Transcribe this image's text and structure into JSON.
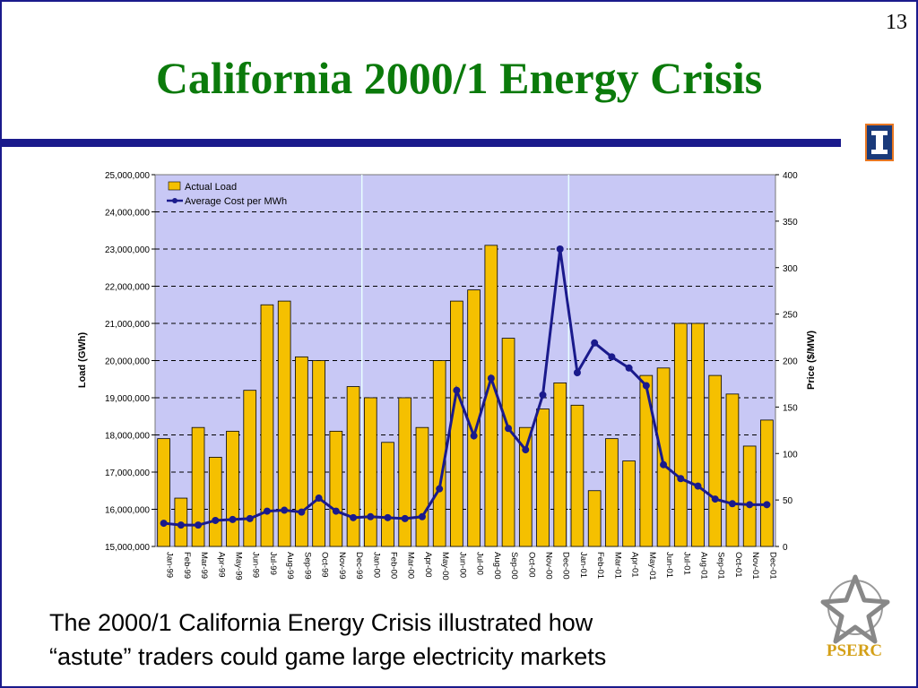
{
  "slide": {
    "number": "13",
    "title": "California 2000/1 Energy Crisis",
    "caption_line1": "The 2000/1 California Energy Crisis illustrated how",
    "caption_line2": "“astute” traders could game large electricity markets",
    "logo_text": "PSERC",
    "colors": {
      "title": "#0b7a0b",
      "rule": "#1a1a8c",
      "bars": "#f5c000",
      "line": "#1a1a8c",
      "plot_bg": "#c8c8f5"
    }
  },
  "chart_data": {
    "type": "bar",
    "categories": [
      "Jan-99",
      "Feb-99",
      "Mar-99",
      "Apr-99",
      "May-99",
      "Jun-99",
      "Jul-99",
      "Aug-99",
      "Sep-99",
      "Oct-99",
      "Nov-99",
      "Dec-99",
      "Jan-00",
      "Feb-00",
      "Mar-00",
      "Apr-00",
      "May-00",
      "Jun-00",
      "Jul-00",
      "Aug-00",
      "Sep-00",
      "Oct-00",
      "Nov-00",
      "Dec-00",
      "Jan-01",
      "Feb-01",
      "Mar-01",
      "Apr-01",
      "May-01",
      "Jun-01",
      "Jul-01",
      "Aug-01",
      "Sep-01",
      "Oct-01",
      "Nov-01",
      "Dec-01"
    ],
    "series": [
      {
        "name": "Actual Load",
        "kind": "bar",
        "axis": "left",
        "values": [
          17900000,
          16300000,
          18200000,
          17400000,
          18100000,
          19200000,
          21500000,
          21600000,
          20100000,
          20000000,
          18100000,
          19300000,
          19000000,
          17800000,
          19000000,
          18200000,
          20000000,
          21600000,
          21900000,
          23100000,
          20600000,
          18200000,
          18700000,
          19400000,
          18800000,
          16500000,
          17900000,
          17300000,
          19600000,
          19800000,
          21000000,
          21000000,
          19600000,
          19100000,
          17700000,
          18400000
        ]
      },
      {
        "name": "Average Cost per MWh",
        "kind": "line",
        "axis": "right",
        "values": [
          25,
          23,
          23,
          28,
          29,
          30,
          38,
          39,
          37,
          52,
          38,
          31,
          32,
          31,
          30,
          32,
          62,
          168,
          119,
          181,
          127,
          104,
          163,
          320,
          187,
          219,
          204,
          192,
          173,
          88,
          73,
          65,
          51,
          46,
          45,
          45
        ]
      }
    ],
    "ylabel": "Load (GWh)",
    "y2label": "Price ($/MW)",
    "ylim": [
      15000000,
      25000000
    ],
    "y2lim": [
      0,
      400
    ],
    "yticks": [
      "15,000,000",
      "16,000,000",
      "17,000,000",
      "18,000,000",
      "19,000,000",
      "20,000,000",
      "21,000,000",
      "22,000,000",
      "23,000,000",
      "24,000,000",
      "25,000,000"
    ],
    "y2ticks": [
      "0",
      "50",
      "100",
      "150",
      "200",
      "250",
      "300",
      "350",
      "400"
    ],
    "legend_position": "top-left",
    "grid": true
  }
}
